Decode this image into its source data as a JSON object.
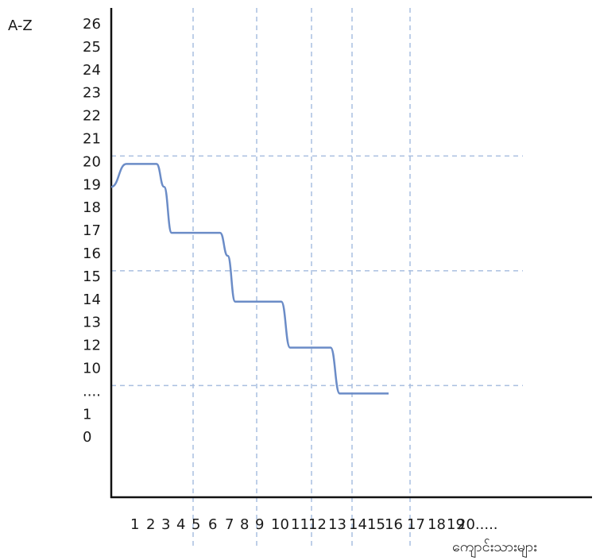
{
  "chart_data": {
    "type": "line",
    "ylabel": "A-Z",
    "xlabel": "ကျောင်းသားများ",
    "y_tick_labels": [
      "26",
      "25",
      "24",
      "23",
      "22",
      "21",
      "20",
      "19",
      "18",
      "17",
      "16",
      "15",
      "14",
      "13",
      "12",
      "10",
      "....",
      "1",
      "0"
    ],
    "x_tick_labels": [
      "1",
      "2",
      "3",
      "4",
      "5",
      "6",
      "7",
      "8",
      "9",
      "10",
      "11",
      "12",
      "13",
      "14",
      "15",
      "16",
      "17",
      "18",
      "19",
      "20....."
    ],
    "x_gridlines_at": [
      5,
      9,
      12,
      14,
      17
    ],
    "y_gridlines_at": [
      "20",
      "15",
      "...."
    ],
    "series": [
      {
        "x": [
          1,
          2,
          3,
          4,
          4.5,
          5,
          6,
          7,
          8,
          8.5,
          9,
          10,
          11,
          11.5,
          12,
          13,
          14,
          14.5,
          15,
          16,
          17
        ],
        "y": [
          "19",
          "20",
          "20",
          "20",
          "19",
          "17",
          "17",
          "17",
          "17",
          "16",
          "14",
          "14",
          "14",
          "14",
          "12",
          "12",
          "12",
          "....",
          "....",
          "....",
          "...."
        ]
      }
    ],
    "grid": "dashed",
    "colors": {
      "line": "#6b8cc7",
      "grid": "#a9bfe0",
      "axis": "#111111"
    }
  }
}
